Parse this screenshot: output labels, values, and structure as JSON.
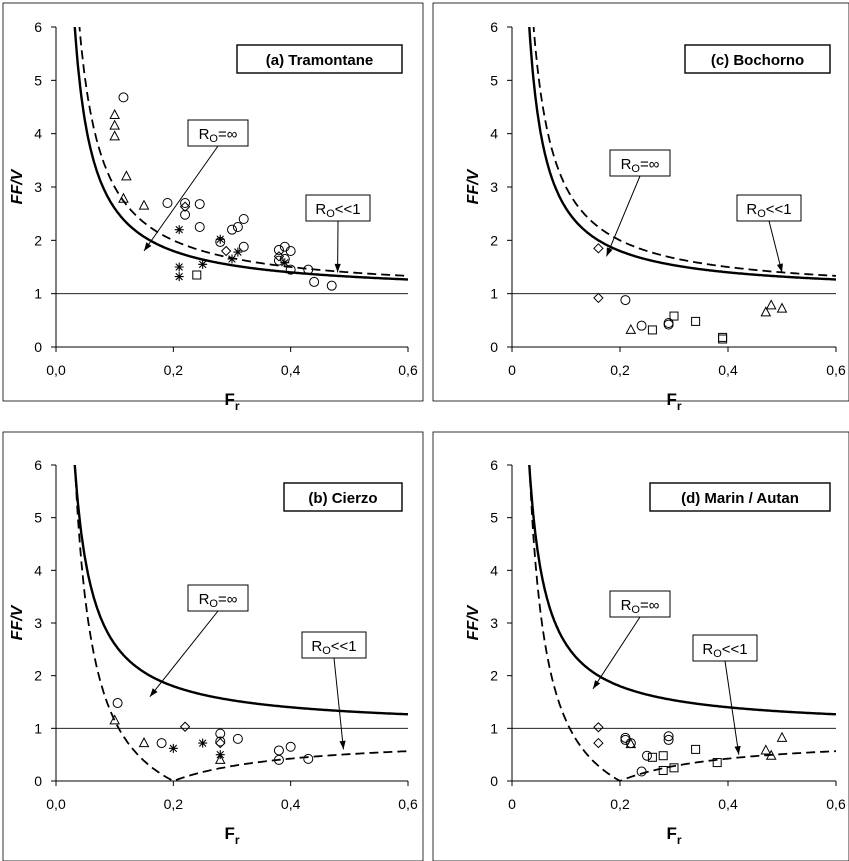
{
  "chart_data": [
    {
      "type": "scatter",
      "title": "(a) Tramontane",
      "xlabel": "F",
      "xlabel_sub": "r",
      "ylabel": "FF/V",
      "xlim": [
        0,
        0.6
      ],
      "ylim": [
        0,
        6
      ],
      "xticks": [
        "0,0",
        "0,2",
        "0,4",
        "0,6"
      ],
      "yticks": [
        "0",
        "1",
        "2",
        "3",
        "4",
        "5",
        "6"
      ],
      "reference_line_y": 1,
      "annotations": [
        {
          "label_main": "R",
          "label_sub": "O",
          "label_rest": "=∞",
          "target": [
            0.15,
            1.8
          ]
        },
        {
          "label_main": "R",
          "label_sub": "O",
          "label_rest": "<<1",
          "target": [
            0.48,
            1.4
          ]
        }
      ],
      "series": [
        {
          "marker": "triangle",
          "points": [
            [
              0.1,
              4.35
            ],
            [
              0.1,
              4.15
            ],
            [
              0.1,
              3.95
            ],
            [
              0.12,
              3.2
            ],
            [
              0.115,
              2.78
            ],
            [
              0.15,
              2.65
            ]
          ]
        },
        {
          "marker": "circle",
          "points": [
            [
              0.115,
              4.68
            ],
            [
              0.19,
              2.7
            ],
            [
              0.22,
              2.7
            ],
            [
              0.245,
              2.68
            ],
            [
              0.245,
              2.25
            ],
            [
              0.22,
              2.48
            ],
            [
              0.3,
              2.2
            ],
            [
              0.32,
              2.4
            ],
            [
              0.31,
              2.25
            ],
            [
              0.32,
              1.88
            ],
            [
              0.28,
              1.97
            ],
            [
              0.38,
              1.82
            ],
            [
              0.39,
              1.88
            ],
            [
              0.4,
              1.8
            ],
            [
              0.4,
              1.45
            ],
            [
              0.43,
              1.45
            ],
            [
              0.39,
              1.65
            ],
            [
              0.38,
              1.62
            ],
            [
              0.44,
              1.22
            ],
            [
              0.47,
              1.15
            ]
          ]
        },
        {
          "marker": "diamond",
          "points": [
            [
              0.22,
              2.63
            ],
            [
              0.29,
              1.8
            ],
            [
              0.38,
              1.7
            ]
          ]
        },
        {
          "marker": "square",
          "points": [
            [
              0.24,
              1.35
            ]
          ]
        },
        {
          "marker": "star",
          "points": [
            [
              0.21,
              2.2
            ],
            [
              0.21,
              1.5
            ],
            [
              0.21,
              1.32
            ],
            [
              0.25,
              1.55
            ],
            [
              0.28,
              2.02
            ],
            [
              0.31,
              1.78
            ],
            [
              0.3,
              1.65
            ],
            [
              0.39,
              1.58
            ]
          ]
        }
      ]
    },
    {
      "type": "scatter",
      "title": "(c) Bochorno",
      "xlabel": "F",
      "xlabel_sub": "r",
      "ylabel": "FF/V",
      "xlim": [
        0,
        0.6
      ],
      "ylim": [
        0,
        6
      ],
      "xticks": [
        "0",
        "0,2",
        "0,4",
        "0,6"
      ],
      "yticks": [
        "0",
        "1",
        "2",
        "3",
        "4",
        "5",
        "6"
      ],
      "reference_line_y": 1,
      "annotations": [
        {
          "label_main": "R",
          "label_sub": "O",
          "label_rest": "=∞",
          "target": [
            0.175,
            1.7
          ]
        },
        {
          "label_main": "R",
          "label_sub": "O",
          "label_rest": "<<1",
          "target": [
            0.5,
            1.4
          ]
        }
      ],
      "series": [
        {
          "marker": "diamond",
          "points": [
            [
              0.16,
              1.85
            ],
            [
              0.16,
              0.92
            ]
          ]
        },
        {
          "marker": "circle",
          "points": [
            [
              0.21,
              0.88
            ],
            [
              0.24,
              0.4
            ],
            [
              0.29,
              0.42
            ],
            [
              0.29,
              0.45
            ]
          ]
        },
        {
          "marker": "triangle",
          "points": [
            [
              0.22,
              0.32
            ],
            [
              0.47,
              0.65
            ],
            [
              0.48,
              0.78
            ],
            [
              0.5,
              0.72
            ]
          ]
        },
        {
          "marker": "square",
          "points": [
            [
              0.26,
              0.32
            ],
            [
              0.3,
              0.58
            ],
            [
              0.34,
              0.48
            ],
            [
              0.39,
              0.18
            ],
            [
              0.39,
              0.15
            ]
          ]
        }
      ]
    },
    {
      "type": "scatter",
      "title": "(b) Cierzo",
      "xlabel": "F",
      "xlabel_sub": "r",
      "ylabel": "FF/V",
      "xlim": [
        0,
        0.6
      ],
      "ylim": [
        0,
        6
      ],
      "xticks": [
        "0,0",
        "0,2",
        "0,4",
        "0,6"
      ],
      "yticks": [
        "0",
        "1",
        "2",
        "3",
        "4",
        "5",
        "6"
      ],
      "reference_line_y": 1,
      "annotations": [
        {
          "label_main": "R",
          "label_sub": "O",
          "label_rest": "=∞",
          "target": [
            0.16,
            1.6
          ]
        },
        {
          "label_main": "R",
          "label_sub": "O",
          "label_rest": "<<1",
          "target": [
            0.49,
            0.6
          ]
        }
      ],
      "series": [
        {
          "marker": "circle",
          "points": [
            [
              0.105,
              1.48
            ],
            [
              0.18,
              0.72
            ],
            [
              0.28,
              0.9
            ],
            [
              0.28,
              0.75
            ],
            [
              0.31,
              0.8
            ],
            [
              0.38,
              0.58
            ],
            [
              0.38,
              0.4
            ],
            [
              0.4,
              0.65
            ],
            [
              0.43,
              0.42
            ]
          ]
        },
        {
          "marker": "triangle",
          "points": [
            [
              0.1,
              1.15
            ],
            [
              0.15,
              0.72
            ],
            [
              0.28,
              0.4
            ]
          ]
        },
        {
          "marker": "diamond",
          "points": [
            [
              0.22,
              1.03
            ],
            [
              0.28,
              0.72
            ]
          ]
        },
        {
          "marker": "star",
          "points": [
            [
              0.2,
              0.62
            ],
            [
              0.25,
              0.72
            ],
            [
              0.28,
              0.5
            ]
          ]
        }
      ]
    },
    {
      "type": "scatter",
      "title": "(d) Marin / Autan",
      "xlabel": "F",
      "xlabel_sub": "r",
      "ylabel": "FF/V",
      "xlim": [
        0,
        0.6
      ],
      "ylim": [
        0,
        6
      ],
      "xticks": [
        "0",
        "0,2",
        "0,4",
        "0,6"
      ],
      "yticks": [
        "0",
        "1",
        "2",
        "3",
        "4",
        "5",
        "6"
      ],
      "reference_line_y": 1,
      "annotations": [
        {
          "label_main": "R",
          "label_sub": "O",
          "label_rest": "=∞",
          "target": [
            0.15,
            1.75
          ]
        },
        {
          "label_main": "R",
          "label_sub": "O",
          "label_rest": "<<1",
          "target": [
            0.42,
            0.5
          ]
        }
      ],
      "series": [
        {
          "marker": "diamond",
          "points": [
            [
              0.16,
              1.02
            ],
            [
              0.16,
              0.72
            ]
          ]
        },
        {
          "marker": "circle",
          "points": [
            [
              0.21,
              0.82
            ],
            [
              0.21,
              0.78
            ],
            [
              0.22,
              0.72
            ],
            [
              0.24,
              0.18
            ],
            [
              0.29,
              0.78
            ],
            [
              0.29,
              0.85
            ],
            [
              0.25,
              0.48
            ]
          ]
        },
        {
          "marker": "triangle",
          "points": [
            [
              0.22,
              0.7
            ],
            [
              0.47,
              0.58
            ],
            [
              0.48,
              0.48
            ],
            [
              0.5,
              0.82
            ]
          ]
        },
        {
          "marker": "square",
          "points": [
            [
              0.26,
              0.45
            ],
            [
              0.28,
              0.48
            ],
            [
              0.3,
              0.25
            ],
            [
              0.34,
              0.6
            ],
            [
              0.38,
              0.35
            ],
            [
              0.28,
              0.2
            ]
          ]
        }
      ]
    }
  ]
}
